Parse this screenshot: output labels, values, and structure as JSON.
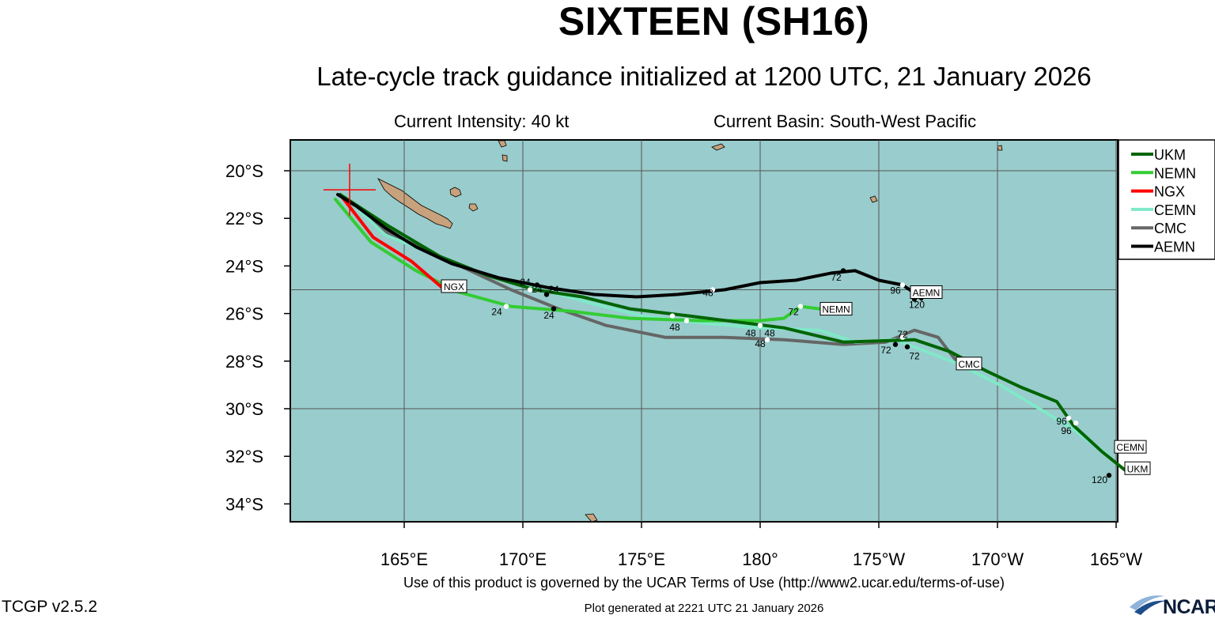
{
  "header": {
    "title": "SIXTEEN (SH16)",
    "subtitle": "Late-cycle track guidance initialized at 1200 UTC, 21 January 2026",
    "intensity": "Current Intensity: 40 kt",
    "basin": "Current Basin: South-West Pacific"
  },
  "footer": {
    "terms": "Use of this product is governed by the UCAR Terms of Use (http://www2.ucar.edu/terms-of-use)",
    "plot_generated": "Plot generated at 2221 UTC   21 January 2026",
    "version": "TCGP v2.5.2",
    "logo": "NCAR"
  },
  "colors": {
    "ocean": "#99cccc",
    "land": "#c8a27c",
    "grid": "#555555",
    "UKM": "#006400",
    "NEMN": "#33cc33",
    "NGX": "#ff0000",
    "CEMN": "#80e8c8",
    "CMC": "#666666",
    "AEMN": "#000000"
  },
  "map": {
    "lon_ticks": [
      "165°E",
      "170°E",
      "175°E",
      "180°",
      "175°W",
      "170°W",
      "165°W"
    ],
    "lat_ticks": [
      "20°S",
      "22°S",
      "24°S",
      "26°S",
      "28°S",
      "30°S",
      "32°S",
      "34°S"
    ],
    "storm_position": {
      "lon": 162.7,
      "lat": -20.8
    }
  },
  "legend": [
    "UKM",
    "NEMN",
    "NGX",
    "CEMN",
    "CMC",
    "AEMN"
  ],
  "tracks": [
    {
      "name": "UKM",
      "label": "UKM",
      "points": [
        [
          162.3,
          -21.0
        ],
        [
          164.3,
          -22.3
        ],
        [
          166.5,
          -23.6
        ],
        [
          168.5,
          -24.4
        ],
        [
          170.5,
          -25.0
        ],
        [
          172.5,
          -25.3
        ],
        [
          174.5,
          -25.8
        ],
        [
          177.0,
          -26.1
        ],
        [
          181.0,
          -26.6
        ],
        [
          183.5,
          -27.2
        ],
        [
          186.5,
          -27.1
        ],
        [
          188.0,
          -27.6
        ],
        [
          189.5,
          -28.4
        ],
        [
          191.0,
          -29.1
        ],
        [
          192.5,
          -29.7
        ],
        [
          193.2,
          -30.7
        ],
        [
          194.4,
          -31.8
        ],
        [
          195.4,
          -32.6
        ]
      ],
      "marks": [
        {
          "lon": 171.3,
          "lat": -25.8,
          "t": "24"
        },
        {
          "lon": 176.9,
          "lat": -26.3,
          "t": "48"
        },
        {
          "lon": 186.2,
          "lat": -27.4,
          "t": "72"
        },
        {
          "lon": 193.0,
          "lat": -30.4,
          "t": "96"
        },
        {
          "lon": 194.7,
          "lat": -32.8,
          "t": "120"
        }
      ]
    },
    {
      "name": "NEMN",
      "label": "NEMN",
      "points": [
        [
          162.1,
          -21.2
        ],
        [
          163.6,
          -23.0
        ],
        [
          165.5,
          -24.2
        ],
        [
          167.3,
          -25.1
        ],
        [
          169.5,
          -25.7
        ],
        [
          172.0,
          -25.9
        ],
        [
          174.5,
          -26.2
        ],
        [
          177.5,
          -26.3
        ],
        [
          180.0,
          -26.3
        ],
        [
          181.0,
          -26.2
        ],
        [
          181.7,
          -25.7
        ],
        [
          182.5,
          -25.8
        ]
      ],
      "marks": [
        {
          "lon": 169.3,
          "lat": -25.7,
          "t": "24"
        },
        {
          "lon": 176.3,
          "lat": -26.1,
          "t": "48"
        },
        {
          "lon": 181.7,
          "lat": -25.7,
          "t": "72"
        }
      ]
    },
    {
      "name": "NGX",
      "label": "NGX",
      "points": [
        [
          162.3,
          -21.0
        ],
        [
          163.7,
          -22.8
        ],
        [
          165.3,
          -23.8
        ],
        [
          166.7,
          -25.0
        ]
      ],
      "marks": []
    },
    {
      "name": "CEMN",
      "label": "CEMN",
      "points": [
        [
          162.4,
          -21.0
        ],
        [
          164.2,
          -22.7
        ],
        [
          166.2,
          -23.5
        ],
        [
          168.5,
          -24.4
        ],
        [
          171.2,
          -25.1
        ],
        [
          173.0,
          -25.6
        ],
        [
          175.0,
          -26.1
        ],
        [
          177.5,
          -26.4
        ],
        [
          180.0,
          -26.6
        ],
        [
          182.5,
          -26.7
        ],
        [
          184.0,
          -27.2
        ],
        [
          185.7,
          -27.1
        ],
        [
          188.3,
          -28.1
        ],
        [
          190.1,
          -29.0
        ],
        [
          191.6,
          -29.9
        ],
        [
          193.1,
          -30.8
        ],
        [
          194.6,
          -31.9
        ]
      ],
      "marks": [
        {
          "lon": 170.3,
          "lat": -25.0,
          "t": "24"
        },
        {
          "lon": 180.0,
          "lat": -26.5,
          "t": "48"
        },
        {
          "lon": 186.0,
          "lat": -27.0,
          "t": "72"
        },
        {
          "lon": 193.3,
          "lat": -30.6,
          "t": "96"
        }
      ]
    },
    {
      "name": "CMC",
      "label": "CMC",
      "points": [
        [
          162.3,
          -21.0
        ],
        [
          164.3,
          -22.6
        ],
        [
          166.5,
          -23.6
        ],
        [
          169.5,
          -25.0
        ],
        [
          171.5,
          -25.8
        ],
        [
          173.5,
          -26.5
        ],
        [
          176.0,
          -27.0
        ],
        [
          178.5,
          -27.0
        ],
        [
          181.0,
          -27.1
        ],
        [
          183.5,
          -27.3
        ],
        [
          185.3,
          -27.2
        ],
        [
          186.5,
          -26.7
        ],
        [
          187.5,
          -27.0
        ],
        [
          188.5,
          -28.3
        ]
      ],
      "marks": [
        {
          "lon": 171.0,
          "lat": -25.2,
          "t": "24"
        },
        {
          "lon": 180.3,
          "lat": -27.1,
          "t": "48"
        },
        {
          "lon": 185.7,
          "lat": -27.3,
          "t": "72"
        }
      ]
    },
    {
      "name": "AEMN",
      "label": "AEMN",
      "points": [
        [
          162.2,
          -21.0
        ],
        [
          163.0,
          -21.5
        ],
        [
          164.2,
          -22.4
        ],
        [
          165.5,
          -23.2
        ],
        [
          167.0,
          -23.9
        ],
        [
          169.0,
          -24.5
        ],
        [
          171.0,
          -24.9
        ],
        [
          173.0,
          -25.2
        ],
        [
          174.8,
          -25.3
        ],
        [
          176.5,
          -25.2
        ],
        [
          178.5,
          -25.0
        ],
        [
          180.0,
          -24.7
        ],
        [
          181.5,
          -24.6
        ],
        [
          183.0,
          -24.3
        ],
        [
          184.0,
          -24.2
        ],
        [
          185.0,
          -24.6
        ],
        [
          186.0,
          -24.8
        ],
        [
          186.3,
          -25.0
        ],
        [
          186.8,
          -25.4
        ]
      ],
      "marks": [
        {
          "lon": 170.6,
          "lat": -24.8,
          "t": "24"
        },
        {
          "lon": 178.0,
          "lat": -25.0,
          "t": "48"
        },
        {
          "lon": 183.5,
          "lat": -24.2,
          "t": "72"
        },
        {
          "lon": 186.0,
          "lat": -24.8,
          "t": "96"
        },
        {
          "lon": 186.5,
          "lat": -25.4,
          "t": "120"
        }
      ]
    }
  ],
  "end_labels": [
    {
      "text": "NGX",
      "lon": 167.1,
      "lat": -24.85
    },
    {
      "text": "NEMN",
      "lon": 183.2,
      "lat": -25.8
    },
    {
      "text": "AEMN",
      "lon": 187.0,
      "lat": -25.1
    },
    {
      "text": "CMC",
      "lon": 188.8,
      "lat": -28.1
    },
    {
      "text": "CEMN",
      "lon": 195.6,
      "lat": -31.6
    },
    {
      "text": "UKM",
      "lon": 195.9,
      "lat": -32.5
    }
  ],
  "hour_labels": [
    {
      "t": "24",
      "lon": 170.1,
      "lat": -24.65
    },
    {
      "t": "24",
      "lon": 170.6,
      "lat": -24.95
    },
    {
      "t": "24",
      "lon": 171.3,
      "lat": -24.95
    },
    {
      "t": "24",
      "lon": 168.9,
      "lat": -25.9
    },
    {
      "t": "24",
      "lon": 171.1,
      "lat": -26.05
    },
    {
      "t": "48",
      "lon": 176.4,
      "lat": -26.55
    },
    {
      "t": "48",
      "lon": 177.8,
      "lat": -25.1
    },
    {
      "t": "48",
      "lon": 179.6,
      "lat": -26.8
    },
    {
      "t": "48",
      "lon": 180.4,
      "lat": -26.8
    },
    {
      "t": "48",
      "lon": 180.0,
      "lat": -27.25
    },
    {
      "t": "72",
      "lon": 181.4,
      "lat": -25.9
    },
    {
      "t": "72",
      "lon": 183.2,
      "lat": -24.45
    },
    {
      "t": "72",
      "lon": 186.0,
      "lat": -26.85
    },
    {
      "t": "72",
      "lon": 185.3,
      "lat": -27.5
    },
    {
      "t": "72",
      "lon": 186.5,
      "lat": -27.75
    },
    {
      "t": "96",
      "lon": 185.7,
      "lat": -25.0
    },
    {
      "t": "96",
      "lon": 192.7,
      "lat": -30.5
    },
    {
      "t": "96",
      "lon": 192.9,
      "lat": -30.9
    },
    {
      "t": "120",
      "lon": 186.6,
      "lat": -25.6
    },
    {
      "t": "120",
      "lon": 194.3,
      "lat": -32.95
    }
  ]
}
